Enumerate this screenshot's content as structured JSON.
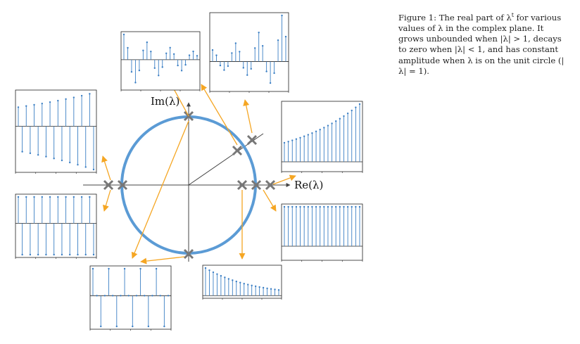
{
  "caption": {
    "lead": "Figure 1: The real part of λ",
    "exp": "t",
    "text": " for various values of λ in the complex plane. It grows unbounded when |λ| > 1, decays to zero when |λ| < 1, and has constant amplitude when λ is on the unit circle (|λ| = 1)."
  },
  "axes": {
    "re_label": "Re(λ)",
    "im_label": "Im(λ)"
  },
  "colors": {
    "circle": "#5b9bd5",
    "arrow": "#f5a623",
    "stem": "#3b7fc4",
    "cross": "#777777",
    "axis": "#444444"
  },
  "panels": [
    {
      "id": "top-left",
      "lambda": "e^{iπ/3} decaying",
      "behaviour": "damped oscillation"
    },
    {
      "id": "top-right",
      "lambda": "e^{iπ/3} growing",
      "behaviour": "growing oscillation"
    },
    {
      "id": "left-upper",
      "lambda": "-1.03",
      "behaviour": "growing alternating"
    },
    {
      "id": "left-lower",
      "lambda": "-1",
      "behaviour": "constant alternating"
    },
    {
      "id": "right-upper",
      "lambda": "1.05",
      "behaviour": "exponential growth"
    },
    {
      "id": "right-lower",
      "lambda": "1",
      "behaviour": "constant"
    },
    {
      "id": "bottom",
      "lambda": "0.9",
      "behaviour": "exponential decay"
    },
    {
      "id": "bottom-left",
      "lambda": "i",
      "behaviour": "period-4 oscillation"
    }
  ]
}
